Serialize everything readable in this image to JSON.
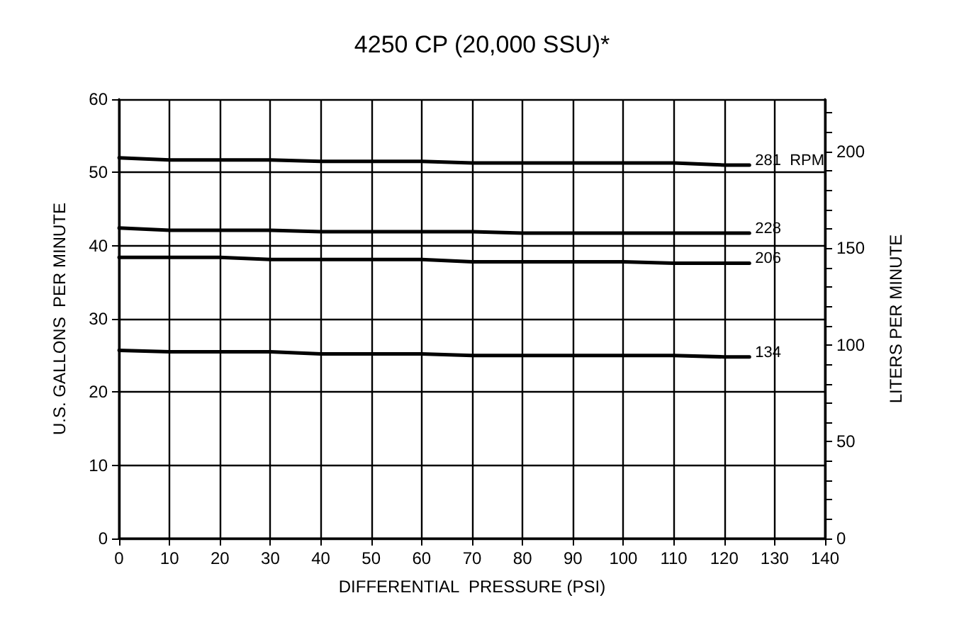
{
  "chart_data": {
    "type": "line",
    "title": "4250 CP (20,000 SSU)*",
    "xlabel": "DIFFERENTIAL  PRESSURE (PSI)",
    "ylabel": "U.S. GALLONS  PER MINUTE",
    "y2label": "LITERS PER MINUTE",
    "x": [
      0,
      10,
      20,
      30,
      40,
      50,
      60,
      70,
      80,
      90,
      100,
      110,
      120,
      125
    ],
    "series": [
      {
        "name": "281  RPM",
        "color": "#000000",
        "values": [
          52.0,
          51.7,
          51.7,
          51.7,
          51.5,
          51.5,
          51.5,
          51.3,
          51.3,
          51.3,
          51.3,
          51.3,
          51.0,
          51.0
        ]
      },
      {
        "name": "228",
        "color": "#000000",
        "values": [
          42.4,
          42.1,
          42.1,
          42.1,
          41.9,
          41.9,
          41.9,
          41.9,
          41.7,
          41.7,
          41.7,
          41.7,
          41.7,
          41.7
        ]
      },
      {
        "name": "206",
        "color": "#000000",
        "values": [
          38.4,
          38.4,
          38.4,
          38.1,
          38.1,
          38.1,
          38.1,
          37.8,
          37.8,
          37.8,
          37.8,
          37.6,
          37.6,
          37.6
        ]
      },
      {
        "name": "134",
        "color": "#000000",
        "values": [
          25.7,
          25.5,
          25.5,
          25.5,
          25.2,
          25.2,
          25.2,
          25.0,
          25.0,
          25.0,
          25.0,
          25.0,
          24.8,
          24.8
        ]
      }
    ],
    "xlim": [
      0,
      140
    ],
    "xticks": [
      0,
      10,
      20,
      30,
      40,
      50,
      60,
      70,
      80,
      90,
      100,
      110,
      120,
      130,
      140
    ],
    "ylim": [
      0,
      60
    ],
    "yticks": [
      0,
      10,
      20,
      30,
      40,
      50,
      60
    ],
    "y2lim": [
      0,
      227.1
    ],
    "y2ticks": [
      0,
      {
        "value": 10,
        "label": null
      },
      {
        "value": 20,
        "label": null
      },
      {
        "value": 30,
        "label": null
      },
      {
        "value": 40,
        "label": null
      },
      50,
      {
        "value": 60,
        "label": null
      },
      {
        "value": 70,
        "label": null
      },
      {
        "value": 80,
        "label": null
      },
      {
        "value": 90,
        "label": null
      },
      100,
      {
        "value": 110,
        "label": null
      },
      {
        "value": 120,
        "label": null
      },
      {
        "value": 130,
        "label": null
      },
      {
        "value": 140,
        "label": null
      },
      150,
      {
        "value": 160,
        "label": null
      },
      {
        "value": 170,
        "label": null
      },
      {
        "value": 180,
        "label": null
      },
      {
        "value": 190,
        "label": null
      },
      200,
      {
        "value": 210,
        "label": null
      },
      {
        "value": 220,
        "label": null
      }
    ],
    "grid": true,
    "legend": false,
    "marker": "none",
    "line_style": "solid"
  }
}
